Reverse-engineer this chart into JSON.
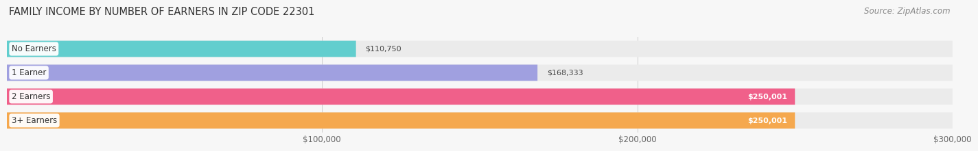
{
  "title": "FAMILY INCOME BY NUMBER OF EARNERS IN ZIP CODE 22301",
  "source": "Source: ZipAtlas.com",
  "categories": [
    "No Earners",
    "1 Earner",
    "2 Earners",
    "3+ Earners"
  ],
  "values": [
    110750,
    168333,
    250001,
    250001
  ],
  "bar_colors": [
    "#62cece",
    "#a0a0e0",
    "#f0608a",
    "#f5a84e"
  ],
  "bar_bg_color": "#ebebeb",
  "value_labels": [
    "$110,750",
    "$168,333",
    "$250,001",
    "$250,001"
  ],
  "label_inside": [
    false,
    false,
    true,
    true
  ],
  "xlim": [
    0,
    300000
  ],
  "xticks": [
    100000,
    200000,
    300000
  ],
  "xtick_labels": [
    "$100,000",
    "$200,000",
    "$300,000"
  ],
  "background_color": "#f7f7f7",
  "title_fontsize": 10.5,
  "source_fontsize": 8.5,
  "bar_height": 0.68,
  "bar_gap": 1.0
}
